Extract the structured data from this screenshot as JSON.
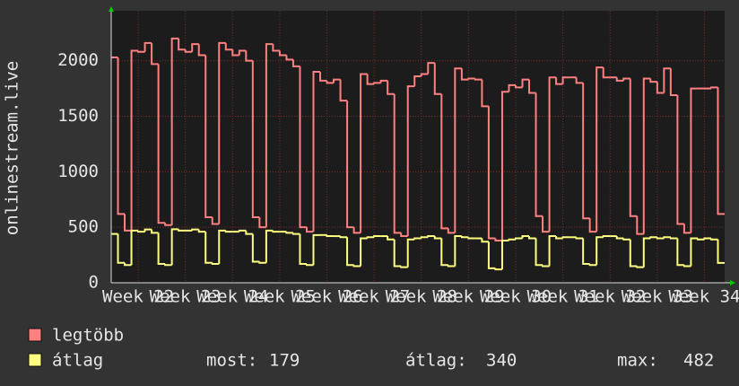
{
  "chart_data": {
    "type": "step-line",
    "y_label": "onlinestream.live",
    "x": [
      0,
      1,
      2,
      3,
      4,
      5,
      6,
      7,
      8,
      9,
      10,
      11,
      12,
      13,
      14,
      15,
      16,
      17,
      18,
      19,
      20,
      21,
      22,
      23,
      24,
      25,
      26,
      27,
      28,
      29,
      30,
      31,
      32,
      33,
      34,
      35,
      36,
      37,
      38,
      39,
      40,
      41,
      42,
      43,
      44,
      45,
      46,
      47,
      48,
      49,
      50,
      51,
      52,
      53,
      54,
      55,
      56,
      57,
      58,
      59,
      60,
      61,
      62,
      63,
      64,
      65,
      66,
      67,
      68,
      69,
      70,
      71,
      72,
      73,
      74,
      75,
      76,
      77,
      78,
      79,
      80,
      81,
      82,
      83,
      84,
      85,
      86,
      87,
      88,
      89,
      90
    ],
    "series": [
      {
        "name": "legtöbb",
        "color": "#ff8080",
        "values": [
          2030,
          620,
          470,
          2090,
          2080,
          2160,
          1970,
          540,
          520,
          2200,
          2100,
          2080,
          2150,
          2050,
          590,
          530,
          2160,
          2100,
          2050,
          2090,
          2000,
          590,
          500,
          2150,
          2090,
          2050,
          2010,
          1950,
          500,
          460,
          1900,
          1820,
          1800,
          1830,
          1640,
          500,
          450,
          1880,
          1790,
          1800,
          1820,
          1700,
          450,
          420,
          1770,
          1860,
          1880,
          1980,
          1700,
          490,
          450,
          1930,
          1830,
          1840,
          1830,
          1590,
          400,
          380,
          1720,
          1780,
          1760,
          1830,
          1710,
          600,
          460,
          1850,
          1790,
          1850,
          1850,
          1800,
          580,
          460,
          1940,
          1850,
          1850,
          1820,
          1840,
          600,
          440,
          1840,
          1810,
          1710,
          1930,
          1690,
          530,
          450,
          1750,
          1750,
          1750,
          1760,
          620
        ]
      },
      {
        "name": "átlag",
        "color": "#ffff80",
        "values": [
          440,
          180,
          160,
          470,
          460,
          480,
          450,
          170,
          160,
          482,
          470,
          470,
          480,
          460,
          180,
          170,
          470,
          460,
          460,
          470,
          440,
          190,
          180,
          470,
          460,
          460,
          450,
          440,
          170,
          160,
          430,
          430,
          420,
          420,
          410,
          160,
          150,
          400,
          410,
          420,
          420,
          390,
          150,
          140,
          390,
          400,
          410,
          420,
          400,
          160,
          150,
          420,
          410,
          400,
          400,
          370,
          130,
          120,
          380,
          390,
          400,
          420,
          400,
          160,
          150,
          420,
          400,
          410,
          410,
          400,
          170,
          160,
          410,
          420,
          420,
          400,
          390,
          150,
          140,
          400,
          410,
          400,
          410,
          400,
          160,
          150,
          400,
          390,
          400,
          390,
          179
        ]
      }
    ],
    "xlim": [
      0,
      91
    ],
    "xticks": [
      {
        "value": 4,
        "label": "Week 22"
      },
      {
        "value": 11,
        "label": "Week 23"
      },
      {
        "value": 18,
        "label": "Week 24"
      },
      {
        "value": 25,
        "label": "Week 25"
      },
      {
        "value": 32,
        "label": "Week 26"
      },
      {
        "value": 39,
        "label": "Week 27"
      },
      {
        "value": 46,
        "label": "Week 28"
      },
      {
        "value": 53,
        "label": "Week 29"
      },
      {
        "value": 60,
        "label": "Week 30"
      },
      {
        "value": 67,
        "label": "Week 31"
      },
      {
        "value": 74,
        "label": "Week 32"
      },
      {
        "value": 81,
        "label": "Week 33"
      },
      {
        "value": 88,
        "label": "Week 34"
      }
    ],
    "ylim": [
      0,
      2450
    ],
    "yticks": [
      0,
      500,
      1000,
      1500,
      2000
    ],
    "grid": true,
    "stats": [
      {
        "label": "most:",
        "value": 179
      },
      {
        "label": "átlag:",
        "value": 340
      },
      {
        "label": "max:",
        "value": 482
      }
    ]
  }
}
